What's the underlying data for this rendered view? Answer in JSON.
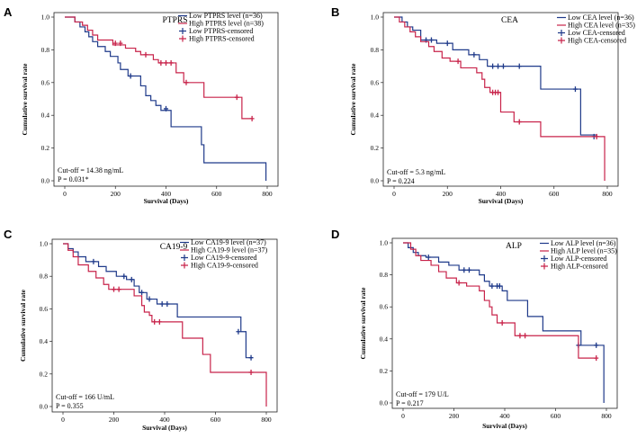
{
  "chart_data": [
    {
      "panel_label": "A",
      "type": "line",
      "title": "PTPRS",
      "xlabel": "Survival (Days)",
      "ylabel": "Cumulative survival rate",
      "xlim": [
        0,
        800
      ],
      "ylim": [
        0,
        1.0
      ],
      "xticks": [
        "0",
        "200",
        "400",
        "600",
        "800"
      ],
      "yticks": [
        "0.0",
        "0.2",
        "0.4",
        "0.6",
        "0.8",
        "1.0"
      ],
      "legend": [
        "Low PTPRS level (n=36)",
        "High PTPRS level (n=38)",
        "Low PTPRS-censored",
        "High PTPRS-censored"
      ],
      "annotations": [
        "Cut-off = 14.38 ng/mL",
        "P = 0.031*"
      ],
      "series": [
        {
          "name": "Low PTPRS level (n=36)",
          "color": "#1f3a8a",
          "steps": [
            [
              0,
              1.0
            ],
            [
              40,
              0.97
            ],
            [
              60,
              0.94
            ],
            [
              80,
              0.91
            ],
            [
              95,
              0.88
            ],
            [
              110,
              0.85
            ],
            [
              130,
              0.82
            ],
            [
              160,
              0.79
            ],
            [
              180,
              0.76
            ],
            [
              210,
              0.72
            ],
            [
              220,
              0.68
            ],
            [
              250,
              0.64
            ],
            [
              300,
              0.58
            ],
            [
              320,
              0.52
            ],
            [
              340,
              0.49
            ],
            [
              360,
              0.46
            ],
            [
              380,
              0.43
            ],
            [
              420,
              0.33
            ],
            [
              540,
              0.22
            ],
            [
              550,
              0.11
            ],
            [
              795,
              0.0
            ]
          ],
          "censored": [
            [
              260,
              0.64
            ],
            [
              400,
              0.44
            ]
          ]
        },
        {
          "name": "High PTPRS level (n=38)",
          "color": "#c8234a",
          "steps": [
            [
              0,
              1.0
            ],
            [
              40,
              0.97
            ],
            [
              70,
              0.95
            ],
            [
              90,
              0.92
            ],
            [
              110,
              0.89
            ],
            [
              130,
              0.86
            ],
            [
              190,
              0.83
            ],
            [
              240,
              0.81
            ],
            [
              280,
              0.79
            ],
            [
              300,
              0.77
            ],
            [
              350,
              0.74
            ],
            [
              370,
              0.72
            ],
            [
              440,
              0.66
            ],
            [
              470,
              0.6
            ],
            [
              550,
              0.51
            ],
            [
              700,
              0.38
            ]
          ],
          "censored": [
            [
              200,
              0.84
            ],
            [
              220,
              0.84
            ],
            [
              320,
              0.77
            ],
            [
              380,
              0.72
            ],
            [
              400,
              0.72
            ],
            [
              420,
              0.72
            ],
            [
              480,
              0.6
            ],
            [
              680,
              0.51
            ],
            [
              740,
              0.38
            ]
          ]
        }
      ]
    },
    {
      "panel_label": "B",
      "type": "line",
      "title": "CEA",
      "xlabel": "Survival (Days)",
      "ylabel": "Cumulative survival rate",
      "xlim": [
        0,
        800
      ],
      "ylim": [
        0,
        1.0
      ],
      "xticks": [
        "0",
        "200",
        "400",
        "600",
        "800"
      ],
      "yticks": [
        "0.0",
        "0.2",
        "0.4",
        "0.6",
        "0.8",
        "1.0"
      ],
      "legend": [
        "Low CEA level (n=36)",
        "High CEA level (n=35)",
        "Low CEA-censored",
        "High CEA-censored"
      ],
      "annotations": [
        "Cut-off = 5.3 ng/mL",
        "P = 0.224"
      ],
      "series": [
        {
          "name": "Low CEA level (n=36)",
          "color": "#1f3a8a",
          "steps": [
            [
              0,
              1.0
            ],
            [
              30,
              0.97
            ],
            [
              50,
              0.94
            ],
            [
              70,
              0.92
            ],
            [
              100,
              0.86
            ],
            [
              160,
              0.84
            ],
            [
              220,
              0.8
            ],
            [
              280,
              0.77
            ],
            [
              320,
              0.74
            ],
            [
              350,
              0.7
            ],
            [
              550,
              0.56
            ],
            [
              700,
              0.28
            ],
            [
              760,
              0.27
            ]
          ],
          "censored": [
            [
              120,
              0.86
            ],
            [
              140,
              0.86
            ],
            [
              200,
              0.84
            ],
            [
              300,
              0.77
            ],
            [
              370,
              0.7
            ],
            [
              390,
              0.7
            ],
            [
              410,
              0.7
            ],
            [
              470,
              0.7
            ],
            [
              680,
              0.56
            ],
            [
              750,
              0.27
            ]
          ]
        },
        {
          "name": "High CEA level (n=35)",
          "color": "#c8234a",
          "steps": [
            [
              0,
              1.0
            ],
            [
              20,
              0.97
            ],
            [
              40,
              0.94
            ],
            [
              60,
              0.91
            ],
            [
              80,
              0.88
            ],
            [
              100,
              0.85
            ],
            [
              130,
              0.82
            ],
            [
              150,
              0.79
            ],
            [
              180,
              0.75
            ],
            [
              210,
              0.73
            ],
            [
              250,
              0.69
            ],
            [
              310,
              0.66
            ],
            [
              330,
              0.62
            ],
            [
              340,
              0.57
            ],
            [
              360,
              0.54
            ],
            [
              400,
              0.42
            ],
            [
              450,
              0.36
            ],
            [
              550,
              0.27
            ],
            [
              790,
              0.0
            ]
          ],
          "censored": [
            [
              240,
              0.73
            ],
            [
              370,
              0.54
            ],
            [
              380,
              0.54
            ],
            [
              390,
              0.54
            ],
            [
              470,
              0.36
            ],
            [
              760,
              0.27
            ]
          ]
        }
      ]
    },
    {
      "panel_label": "C",
      "type": "line",
      "title": "CA19-9",
      "xlabel": "Survival (Days)",
      "ylabel": "Cumulative survival rate",
      "xlim": [
        0,
        800
      ],
      "ylim": [
        0,
        1.0
      ],
      "xticks": [
        "0",
        "200",
        "400",
        "600",
        "800"
      ],
      "yticks": [
        "0.0",
        "0.2",
        "0.4",
        "0.6",
        "0.8",
        "1.0"
      ],
      "legend": [
        "Low CA19-9 level (n=37)",
        "High CA19-9 level (n=37)",
        "Low CA19-9-censored",
        "High CA19-9-censored"
      ],
      "annotations": [
        "Cut-off = 166 U/mL",
        "P = 0.355"
      ],
      "series": [
        {
          "name": "Low CA19-9 level (n=37)",
          "color": "#1f3a8a",
          "steps": [
            [
              0,
              1.0
            ],
            [
              20,
              0.97
            ],
            [
              40,
              0.95
            ],
            [
              60,
              0.92
            ],
            [
              90,
              0.89
            ],
            [
              140,
              0.86
            ],
            [
              170,
              0.83
            ],
            [
              210,
              0.8
            ],
            [
              250,
              0.78
            ],
            [
              280,
              0.74
            ],
            [
              300,
              0.7
            ],
            [
              330,
              0.66
            ],
            [
              370,
              0.63
            ],
            [
              450,
              0.55
            ],
            [
              700,
              0.46
            ],
            [
              720,
              0.3
            ]
          ],
          "censored": [
            [
              120,
              0.89
            ],
            [
              240,
              0.8
            ],
            [
              270,
              0.78
            ],
            [
              310,
              0.7
            ],
            [
              340,
              0.66
            ],
            [
              390,
              0.63
            ],
            [
              410,
              0.63
            ],
            [
              690,
              0.46
            ],
            [
              740,
              0.3
            ]
          ]
        },
        {
          "name": "High CA19-9 level (n=37)",
          "color": "#c8234a",
          "steps": [
            [
              0,
              1.0
            ],
            [
              20,
              0.96
            ],
            [
              40,
              0.92
            ],
            [
              60,
              0.87
            ],
            [
              100,
              0.83
            ],
            [
              130,
              0.79
            ],
            [
              160,
              0.75
            ],
            [
              180,
              0.72
            ],
            [
              280,
              0.68
            ],
            [
              310,
              0.62
            ],
            [
              320,
              0.58
            ],
            [
              340,
              0.56
            ],
            [
              350,
              0.52
            ],
            [
              470,
              0.42
            ],
            [
              550,
              0.32
            ],
            [
              580,
              0.21
            ],
            [
              800,
              0.0
            ]
          ],
          "censored": [
            [
              200,
              0.72
            ],
            [
              220,
              0.72
            ],
            [
              360,
              0.52
            ],
            [
              380,
              0.52
            ],
            [
              740,
              0.21
            ]
          ]
        }
      ]
    },
    {
      "panel_label": "D",
      "type": "line",
      "title": "ALP",
      "xlabel": "Survival (Days)",
      "ylabel": "Cumulative survival rate",
      "xlim": [
        0,
        800
      ],
      "ylim": [
        0,
        1.0
      ],
      "xticks": [
        "0",
        "200",
        "400",
        "600",
        "800"
      ],
      "yticks": [
        "0.0",
        "0.2",
        "0.4",
        "0.6",
        "0.8",
        "1.0"
      ],
      "legend": [
        "Low ALP level (n=36)",
        "High ALP level (n=35)",
        "Low ALP-censored",
        "High ALP-censored"
      ],
      "annotations": [
        "Cut-off = 179 U/L",
        "P = 0.217"
      ],
      "series": [
        {
          "name": "Low ALP level (n=36)",
          "color": "#1f3a8a",
          "steps": [
            [
              0,
              1.0
            ],
            [
              20,
              0.97
            ],
            [
              40,
              0.94
            ],
            [
              60,
              0.92
            ],
            [
              90,
              0.91
            ],
            [
              140,
              0.88
            ],
            [
              180,
              0.86
            ],
            [
              220,
              0.83
            ],
            [
              300,
              0.8
            ],
            [
              320,
              0.76
            ],
            [
              340,
              0.73
            ],
            [
              390,
              0.7
            ],
            [
              410,
              0.64
            ],
            [
              490,
              0.54
            ],
            [
              550,
              0.45
            ],
            [
              700,
              0.36
            ],
            [
              790,
              0.0
            ]
          ],
          "censored": [
            [
              100,
              0.91
            ],
            [
              240,
              0.83
            ],
            [
              260,
              0.83
            ],
            [
              350,
              0.73
            ],
            [
              370,
              0.73
            ],
            [
              380,
              0.73
            ],
            [
              690,
              0.36
            ],
            [
              760,
              0.36
            ]
          ]
        },
        {
          "name": "High ALP level (n=35)",
          "color": "#c8234a",
          "steps": [
            [
              0,
              1.0
            ],
            [
              30,
              0.96
            ],
            [
              50,
              0.92
            ],
            [
              70,
              0.89
            ],
            [
              110,
              0.86
            ],
            [
              140,
              0.82
            ],
            [
              170,
              0.78
            ],
            [
              210,
              0.75
            ],
            [
              250,
              0.73
            ],
            [
              300,
              0.7
            ],
            [
              320,
              0.64
            ],
            [
              340,
              0.6
            ],
            [
              350,
              0.55
            ],
            [
              370,
              0.5
            ],
            [
              440,
              0.42
            ],
            [
              550,
              0.42
            ],
            [
              690,
              0.28
            ]
          ],
          "censored": [
            [
              220,
              0.75
            ],
            [
              390,
              0.5
            ],
            [
              460,
              0.42
            ],
            [
              480,
              0.42
            ],
            [
              760,
              0.28
            ]
          ]
        }
      ]
    }
  ]
}
